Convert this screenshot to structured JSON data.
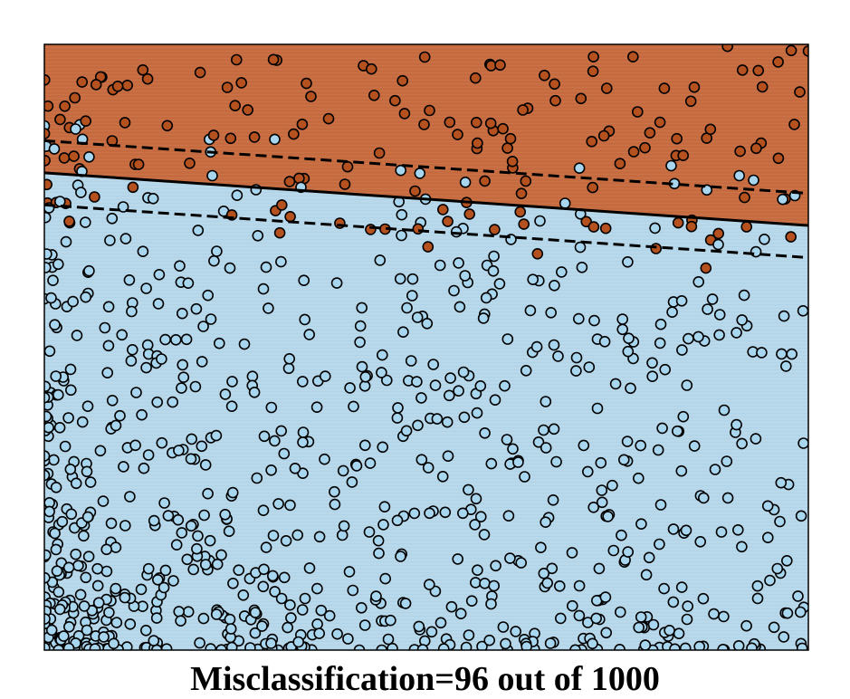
{
  "caption": "Misclassification=96 out of 1000",
  "chart_data": {
    "type": "scatter",
    "title": "Misclassification=96 out of 1000",
    "xlabel": "",
    "ylabel": "",
    "grid": false,
    "legend": "none",
    "xlim": [
      0,
      1
    ],
    "ylim": [
      0,
      1
    ],
    "n_points": 1000,
    "misclassified": 96,
    "colors": {
      "class_upper_region": "#c86e42",
      "class_lower_region": "#b8d8ea",
      "class_upper_point": "#b5511e",
      "class_lower_point": "#a9d6ef",
      "point_edge": "#000000",
      "boundary": "#000000",
      "frame": "#000000"
    },
    "boundary": {
      "style": "solid",
      "intercept": 0.788,
      "slope": -0.087
    },
    "margins": [
      {
        "style": "dashed",
        "intercept": 0.841,
        "slope": -0.087
      },
      {
        "style": "dashed",
        "intercept": 0.735,
        "slope": -0.087
      }
    ],
    "sample_generation": {
      "seed": 7,
      "count": 1000,
      "density_bias": "lower-left"
    }
  }
}
